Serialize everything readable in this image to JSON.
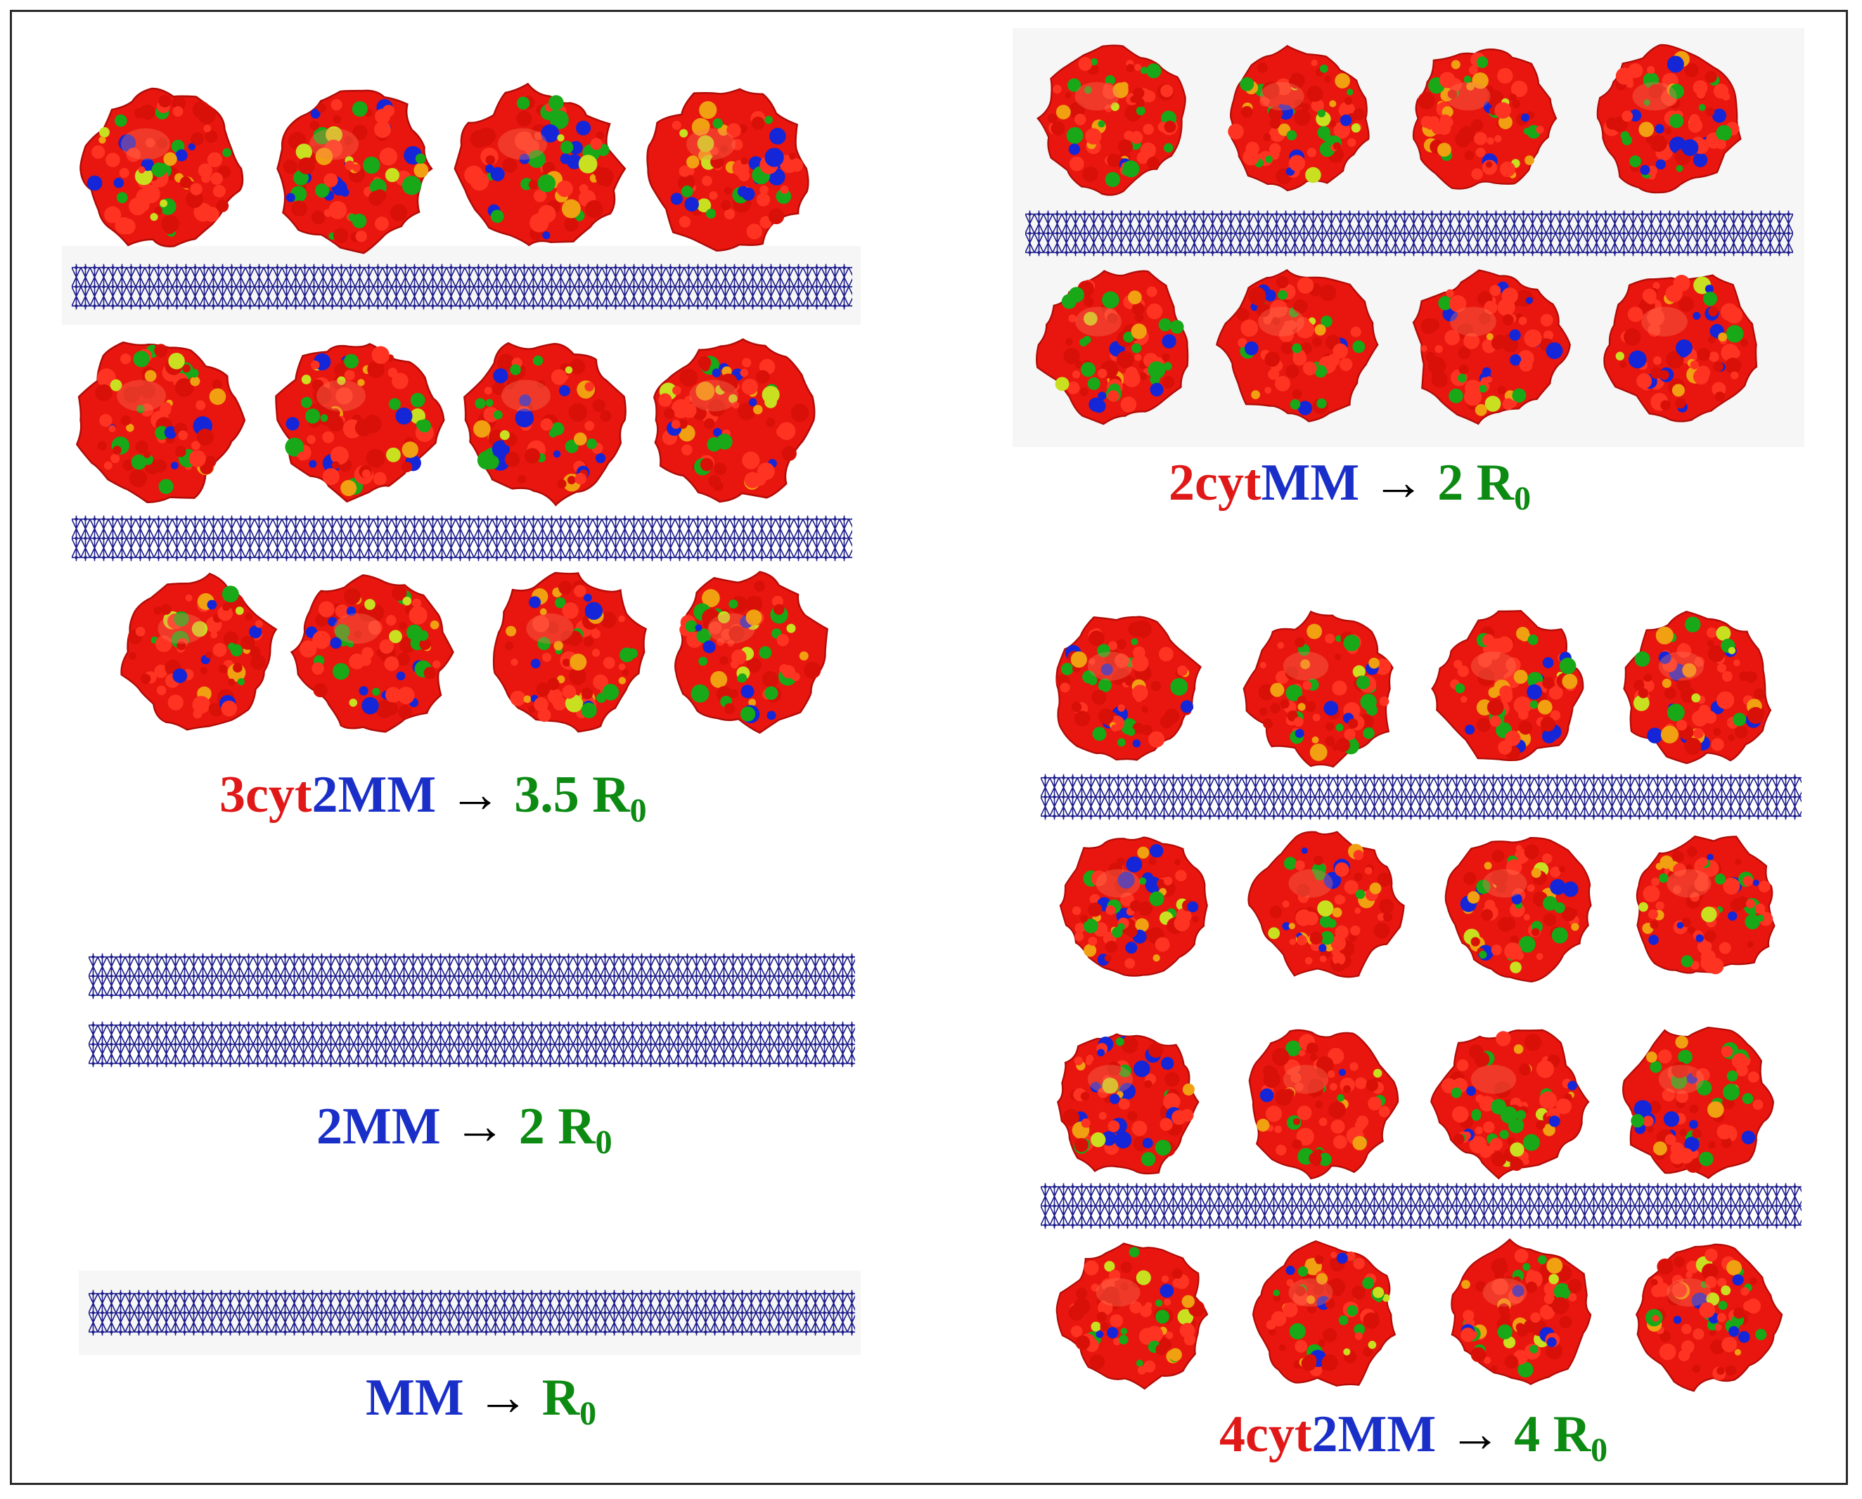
{
  "colors": {
    "cyt": "#e01818",
    "mm": "#1a2fc8",
    "r0": "#0c8a12",
    "arrow": "#000000",
    "membrane": "#1c1c8c",
    "protein_base": "#e8160e",
    "protein_accents": [
      "#18a818",
      "#1426d8",
      "#f0a010",
      "#c8e020"
    ]
  },
  "panels": [
    {
      "id": "3cyt2MM",
      "caption": {
        "cyt": "3cyt",
        "mm": "2MM",
        "arrow": "→",
        "factor": "3.5 R",
        "sub": "0"
      }
    },
    {
      "id": "2MM",
      "caption": {
        "cyt": "",
        "mm": "2MM",
        "arrow": "→",
        "factor": "2 R",
        "sub": "0"
      }
    },
    {
      "id": "MM",
      "caption": {
        "cyt": "",
        "mm": "MM",
        "arrow": "→",
        "factor": "R",
        "sub": "0"
      }
    },
    {
      "id": "2cytMM",
      "caption": {
        "cyt": "2cyt",
        "mm": "MM",
        "arrow": "→",
        "factor": "2 R",
        "sub": "0"
      }
    },
    {
      "id": "4cyt2MM",
      "caption": {
        "cyt": "4cyt",
        "mm": "2MM",
        "arrow": "→",
        "factor": "4 R",
        "sub": "0"
      }
    }
  ],
  "icons": {
    "membrane": "membrane-lattice-icon",
    "protein": "cytochrome-surface-icon"
  }
}
